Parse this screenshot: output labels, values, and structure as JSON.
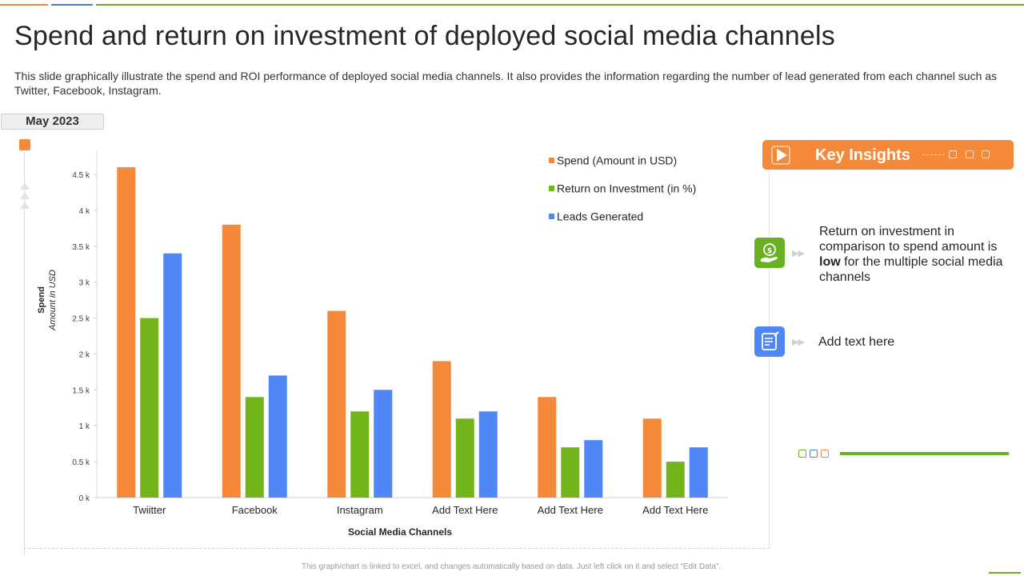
{
  "page": {
    "title": "Spend and return on investment of deployed social media channels",
    "description": "This slide graphically illustrate the spend and ROI performance of deployed  social media channels. It also provides the information regarding the number of lead generated from each channel such as Twitter, Facebook, Instagram.",
    "date_badge": "May 2023",
    "footer": "This graph/chart is linked to excel, and changes automatically based on data. Just left click on it and select “Edit Data”."
  },
  "colors": {
    "spend": "#f5893a",
    "roi": "#72b51a",
    "leads": "#4f87f7",
    "accent_orange": "#f5893a",
    "accent_green": "#6ab023",
    "accent_blue": "#4a7fd6"
  },
  "chart_data": {
    "type": "bar",
    "categories": [
      "Twiitter",
      "Facebook",
      "Instagram",
      "Add Text Here",
      "Add Text Here",
      "Add Text Here"
    ],
    "series": [
      {
        "name": "Spend (Amount in USD)",
        "values": [
          4600,
          3800,
          2600,
          1900,
          1400,
          1100
        ]
      },
      {
        "name": "Return on Investment (in %)",
        "values": [
          2500,
          1400,
          1200,
          1100,
          700,
          500
        ]
      },
      {
        "name": "Leads Generated",
        "values": [
          3400,
          1700,
          1500,
          1200,
          800,
          700
        ]
      }
    ],
    "ylim": [
      0,
      4500
    ],
    "yticks": [
      0,
      500,
      1000,
      1500,
      2000,
      2500,
      3000,
      3500,
      4000,
      4500
    ],
    "ytick_labels": [
      "0 k",
      "0.5 k",
      "1 k",
      "1.5 k",
      "2 k",
      "2.5 k",
      "3 k",
      "3.5 k",
      "4 k",
      "4.5 k"
    ],
    "xlabel": "Social Media Channels",
    "ylabel": "Spend",
    "ylabel_sub": "Amount in USD",
    "legend_position": "top-right"
  },
  "insights": {
    "title": "Key Insights",
    "items": [
      {
        "icon": "money-hand-icon",
        "text_before": "Return  on investment  in comparison to spend amount is ",
        "bold": "low",
        "text_after": " for the multiple social media channels"
      },
      {
        "icon": "notepad-icon",
        "text": "Add text here"
      }
    ]
  }
}
